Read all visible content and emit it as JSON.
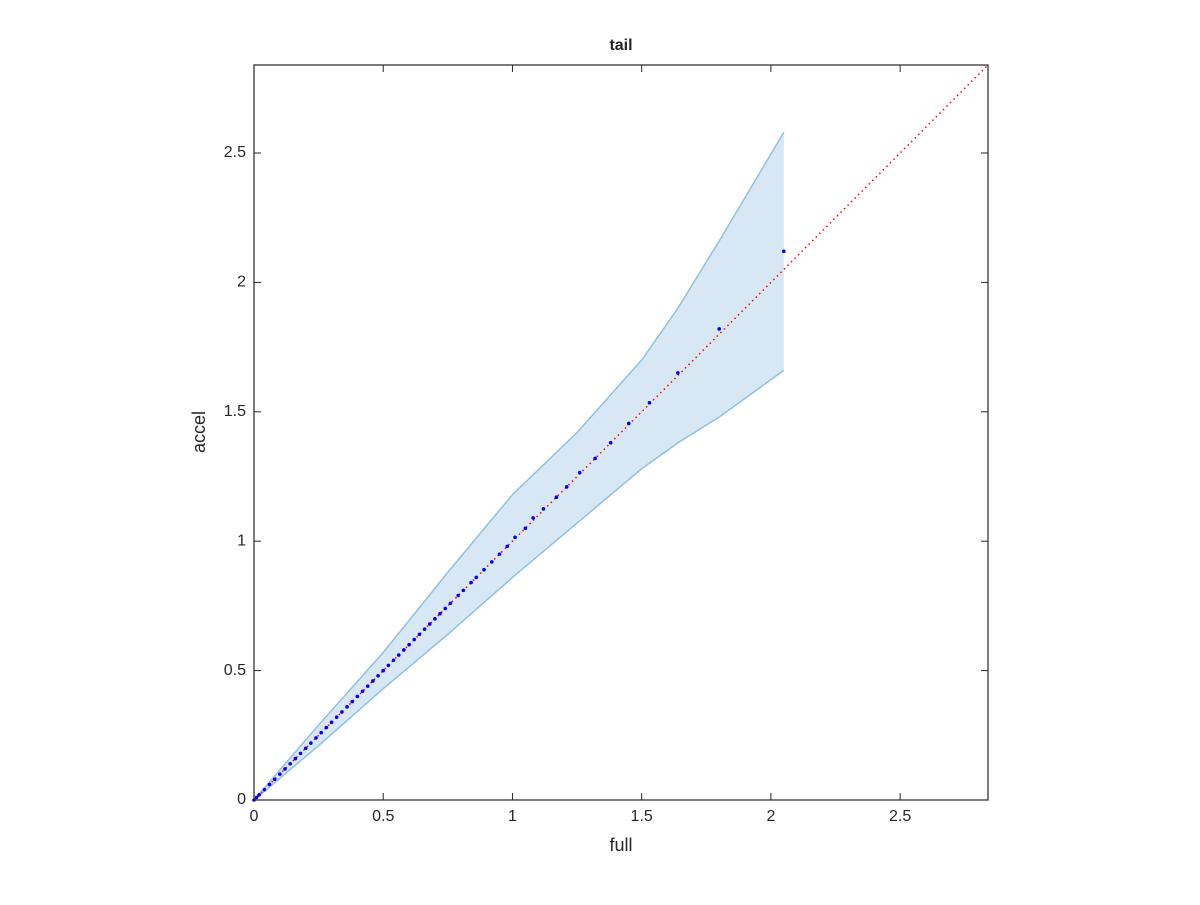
{
  "chart_data": {
    "type": "scatter",
    "title": "tail",
    "x_label": "full",
    "y_label": "accel",
    "xlim": [
      0,
      2.84
    ],
    "ylim": [
      0,
      2.84
    ],
    "xticks": [
      0,
      0.5,
      1,
      1.5,
      2,
      2.5
    ],
    "yticks": [
      0,
      0.5,
      1,
      1.5,
      2,
      2.5
    ],
    "color": "#0000ff",
    "x": [
      2.05,
      1.8,
      1.64,
      1.53,
      1.45,
      1.38,
      1.32,
      1.26,
      1.21,
      1.17,
      1.12,
      1.08,
      1.05,
      1.01,
      0.98,
      0.95,
      0.92,
      0.89,
      0.86,
      0.84,
      0.81,
      0.79,
      0.76,
      0.74,
      0.72,
      0.7,
      0.68,
      0.66,
      0.64,
      0.62,
      0.6,
      0.58,
      0.56,
      0.54,
      0.52,
      0.5,
      0.48,
      0.46,
      0.44,
      0.42,
      0.4,
      0.38,
      0.36,
      0.34,
      0.32,
      0.3,
      0.28,
      0.26,
      0.24,
      0.22,
      0.2,
      0.18,
      0.16,
      0.14,
      0.12,
      0.1,
      0.08,
      0.06,
      0.04,
      0.02,
      0.01,
      0
    ],
    "y": [
      2.12,
      1.82,
      1.65,
      1.535,
      1.455,
      1.38,
      1.32,
      1.265,
      1.21,
      1.17,
      1.125,
      1.09,
      1.05,
      1.015,
      0.98,
      0.95,
      0.92,
      0.89,
      0.86,
      0.84,
      0.81,
      0.79,
      0.76,
      0.74,
      0.72,
      0.7,
      0.68,
      0.66,
      0.64,
      0.62,
      0.6,
      0.58,
      0.56,
      0.54,
      0.52,
      0.5,
      0.48,
      0.46,
      0.44,
      0.42,
      0.4,
      0.38,
      0.36,
      0.34,
      0.32,
      0.3,
      0.28,
      0.26,
      0.24,
      0.22,
      0.2,
      0.18,
      0.16,
      0.14,
      0.12,
      0.1,
      0.08,
      0.06,
      0.04,
      0.02,
      0.01,
      0
    ],
    "band": {
      "color": "#8fc1e3",
      "fill": "#d7e7f3",
      "x": [
        0,
        0.25,
        0.5,
        0.75,
        1.0,
        1.25,
        1.5,
        1.64,
        1.8,
        2.05
      ],
      "upper": [
        0,
        0.29,
        0.57,
        0.88,
        1.18,
        1.42,
        1.7,
        1.9,
        2.16,
        2.58
      ],
      "lower": [
        0,
        0.21,
        0.43,
        0.64,
        0.86,
        1.07,
        1.28,
        1.38,
        1.48,
        1.66
      ]
    },
    "ref_line": {
      "x": [
        0,
        2.84
      ],
      "y": [
        0,
        2.84
      ],
      "color": "#ff0000"
    }
  }
}
